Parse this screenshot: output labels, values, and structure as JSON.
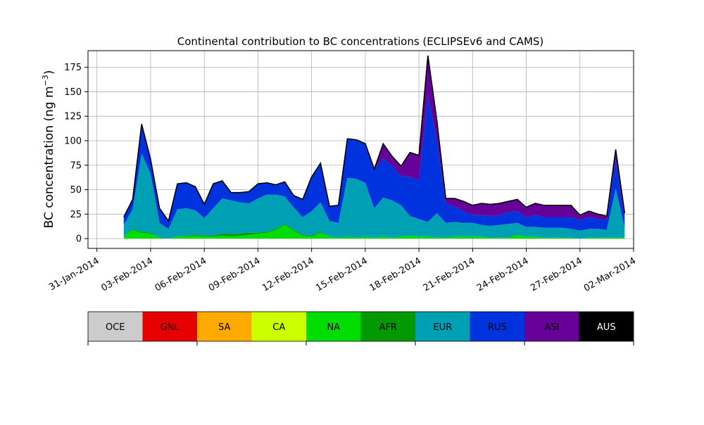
{
  "chart_data": {
    "type": "area",
    "stacked": true,
    "title": "Continental contribution to BC concentrations (ECLIPSEv6 and CAMS)",
    "ylabel": "BC concentration (ng m",
    "ylabel_superscript": "−3",
    "ylabel_close": ")",
    "ylim": [
      -10,
      192
    ],
    "xlim": [
      "2014-01-30T12:00",
      "2014-03-02T00:00"
    ],
    "grid": true,
    "yticks": [
      0,
      25,
      50,
      75,
      100,
      125,
      150,
      175
    ],
    "ytick_labels": [
      "0",
      "25",
      "50",
      "75",
      "100",
      "125",
      "150",
      "175"
    ],
    "xticks": [
      "2014-01-31",
      "2014-02-03",
      "2014-02-06",
      "2014-02-09",
      "2014-02-12",
      "2014-02-15",
      "2014-02-18",
      "2014-02-21",
      "2014-02-24",
      "2014-02-27",
      "2014-03-02"
    ],
    "xtick_labels": [
      "31-Jan-2014",
      "03-Feb-2014",
      "06-Feb-2014",
      "09-Feb-2014",
      "12-Feb-2014",
      "15-Feb-2014",
      "18-Feb-2014",
      "21-Feb-2014",
      "24-Feb-2014",
      "27-Feb-2014",
      "02-Mar-2014"
    ],
    "x": [
      "2014-02-01T12:00",
      "2014-02-02T00:00",
      "2014-02-02T12:00",
      "2014-02-03T00:00",
      "2014-02-03T12:00",
      "2014-02-04T00:00",
      "2014-02-04T12:00",
      "2014-02-05T00:00",
      "2014-02-05T12:00",
      "2014-02-06T00:00",
      "2014-02-06T12:00",
      "2014-02-07T00:00",
      "2014-02-07T12:00",
      "2014-02-08T00:00",
      "2014-02-08T12:00",
      "2014-02-09T00:00",
      "2014-02-09T12:00",
      "2014-02-10T00:00",
      "2014-02-10T12:00",
      "2014-02-11T00:00",
      "2014-02-11T12:00",
      "2014-02-12T00:00",
      "2014-02-12T12:00",
      "2014-02-13T00:00",
      "2014-02-13T12:00",
      "2014-02-14T00:00",
      "2014-02-14T12:00",
      "2014-02-15T00:00",
      "2014-02-15T12:00",
      "2014-02-16T00:00",
      "2014-02-16T12:00",
      "2014-02-17T00:00",
      "2014-02-17T12:00",
      "2014-02-18T00:00",
      "2014-02-18T12:00",
      "2014-02-19T00:00",
      "2014-02-19T12:00",
      "2014-02-20T00:00",
      "2014-02-20T12:00",
      "2014-02-21T00:00",
      "2014-02-21T12:00",
      "2014-02-22T00:00",
      "2014-02-22T12:00",
      "2014-02-23T00:00",
      "2014-02-23T12:00",
      "2014-02-24T00:00",
      "2014-02-24T12:00",
      "2014-02-25T00:00",
      "2014-02-25T12:00",
      "2014-02-26T00:00",
      "2014-02-26T12:00",
      "2014-02-27T00:00",
      "2014-02-27T12:00",
      "2014-02-28T00:00",
      "2014-02-28T12:00",
      "2014-03-01T00:00",
      "2014-03-01T12:00"
    ],
    "series": [
      {
        "name": "OCE",
        "color": "#cccccc",
        "values": [
          0,
          0,
          0,
          0,
          0,
          0,
          0,
          0,
          0,
          0,
          0,
          0,
          0,
          0,
          0,
          0,
          0,
          0,
          0,
          0,
          0,
          0,
          0,
          0,
          0,
          0,
          0,
          0,
          0,
          0,
          0,
          0,
          0,
          0,
          0,
          0,
          0,
          0,
          0,
          0,
          0,
          0,
          0,
          0,
          0,
          0,
          0,
          0,
          0,
          0,
          0,
          0,
          0,
          0,
          0,
          0,
          0
        ]
      },
      {
        "name": "GNL",
        "color": "#e60000",
        "values": [
          0,
          0,
          0,
          0,
          0,
          0,
          0,
          0,
          0,
          0,
          0,
          0,
          0,
          0,
          0,
          0,
          0,
          0,
          0,
          0,
          0,
          0,
          0,
          0,
          0,
          0,
          0,
          0,
          0,
          0,
          0,
          0,
          0,
          0,
          0,
          0,
          0,
          0,
          0,
          0,
          0,
          0,
          0,
          0,
          0,
          0,
          0,
          0,
          0,
          0,
          0,
          0,
          0,
          0,
          0,
          0,
          0
        ]
      },
      {
        "name": "SA",
        "color": "#ffaa00",
        "values": [
          0,
          0,
          0,
          0,
          0,
          0,
          0,
          0,
          0,
          0,
          0,
          0,
          0,
          0,
          0,
          0,
          0,
          0,
          0,
          0,
          0,
          0,
          0,
          0,
          0,
          0,
          0,
          0,
          0,
          0,
          0,
          0,
          0,
          0,
          0,
          0,
          0,
          0,
          0,
          0,
          0,
          0,
          0,
          0,
          0,
          0,
          0,
          0,
          0,
          0,
          0,
          0,
          0,
          0,
          0,
          0,
          0
        ]
      },
      {
        "name": "CA",
        "color": "#ccff00",
        "values": [
          0,
          0,
          0,
          0,
          0,
          0,
          0,
          0,
          0,
          0,
          0,
          0,
          0,
          0,
          0,
          0,
          0,
          0,
          0,
          0,
          0,
          0,
          0,
          0,
          0,
          0,
          0,
          0,
          0,
          0,
          0,
          0,
          0,
          0,
          0,
          0,
          0,
          0,
          0,
          0,
          0,
          0,
          0,
          0,
          0,
          0,
          0,
          0,
          0,
          0,
          0,
          0,
          0,
          0,
          0,
          0,
          0
        ]
      },
      {
        "name": "NA",
        "color": "#00dd00",
        "values": [
          2,
          9,
          6,
          5,
          1,
          0,
          2,
          2,
          3,
          2,
          2,
          3,
          2,
          3,
          4,
          5,
          6,
          9,
          14,
          8,
          3,
          2,
          6,
          2,
          1,
          2,
          1,
          2,
          1,
          2,
          1,
          2,
          3,
          2,
          2,
          1,
          1,
          2,
          2,
          2,
          2,
          1,
          1,
          1,
          4,
          2,
          2,
          1,
          1,
          1,
          1,
          0,
          1,
          1,
          1,
          1,
          1
        ]
      },
      {
        "name": "AFR",
        "color": "#009900",
        "values": [
          0,
          1,
          1,
          1,
          0,
          0,
          0,
          1,
          1,
          1,
          1,
          2,
          3,
          2,
          2,
          1,
          1,
          1,
          1,
          1,
          1,
          1,
          1,
          0,
          0,
          0,
          0,
          0,
          0,
          0,
          0,
          0,
          0,
          0,
          0,
          0,
          0,
          0,
          0,
          0,
          0,
          0,
          0,
          0,
          0,
          0,
          0,
          0,
          0,
          0,
          0,
          0,
          0,
          0,
          0,
          0,
          0
        ]
      },
      {
        "name": "EUR",
        "color": "#00a0b4",
        "values": [
          12,
          20,
          80,
          60,
          15,
          10,
          28,
          28,
          25,
          18,
          28,
          36,
          34,
          32,
          30,
          35,
          38,
          35,
          28,
          23,
          18,
          25,
          30,
          16,
          15,
          60,
          60,
          55,
          30,
          40,
          38,
          32,
          20,
          18,
          15,
          25,
          15,
          15,
          14,
          14,
          12,
          12,
          13,
          14,
          12,
          10,
          10,
          10,
          10,
          10,
          9,
          8,
          9,
          9,
          8,
          50,
          10
        ]
      },
      {
        "name": "RUS",
        "color": "#0033dd",
        "values": [
          8,
          10,
          30,
          15,
          15,
          8,
          26,
          26,
          24,
          14,
          25,
          18,
          8,
          10,
          12,
          15,
          12,
          10,
          15,
          12,
          18,
          35,
          40,
          15,
          18,
          40,
          40,
          40,
          40,
          40,
          35,
          30,
          40,
          40,
          130,
          75,
          20,
          16,
          12,
          8,
          10,
          10,
          10,
          12,
          12,
          10,
          12,
          11,
          11,
          11,
          12,
          11,
          12,
          10,
          10,
          30,
          10
        ]
      },
      {
        "name": "ASI",
        "color": "#660099",
        "values": [
          0,
          0,
          0,
          0,
          0,
          0,
          0,
          0,
          0,
          0,
          0,
          0,
          0,
          0,
          0,
          0,
          0,
          0,
          0,
          0,
          0,
          0,
          0,
          0,
          0,
          0,
          0,
          0,
          0,
          15,
          10,
          10,
          25,
          25,
          40,
          20,
          5,
          8,
          10,
          10,
          12,
          12,
          12,
          11,
          12,
          10,
          12,
          12,
          12,
          12,
          12,
          5,
          6,
          5,
          4,
          10,
          5
        ]
      },
      {
        "name": "AUS",
        "color": "#000000",
        "values": [
          0,
          0,
          0,
          0,
          0,
          0,
          0,
          0,
          0,
          0,
          0,
          0,
          0,
          0,
          0,
          0,
          0,
          0,
          0,
          0,
          0,
          0,
          0,
          0,
          0,
          0,
          0,
          0,
          0,
          0,
          0,
          0,
          0,
          0,
          0,
          0,
          0,
          0,
          0,
          0,
          0,
          0,
          0,
          0,
          0,
          0,
          0,
          0,
          0,
          0,
          0,
          0,
          0,
          0,
          0,
          0,
          0
        ]
      }
    ],
    "legend": [
      "OCE",
      "GNL",
      "SA",
      "CA",
      "NA",
      "AFR",
      "EUR",
      "RUS",
      "ASI",
      "AUS"
    ]
  }
}
